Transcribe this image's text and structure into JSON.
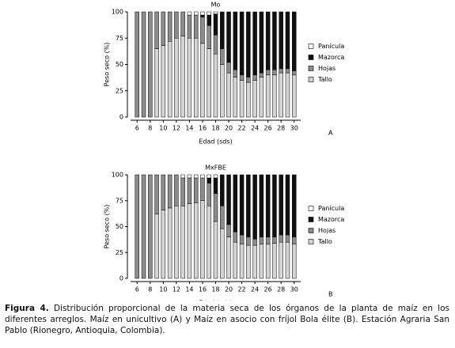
{
  "chart_data": [
    {
      "type": "bar",
      "stacked": true,
      "title": "Mo",
      "panel": "A",
      "xlabel": "Edad (sds)",
      "ylabel": "Peso seco (%)",
      "x": [
        6,
        7,
        8,
        9,
        10,
        11,
        12,
        13,
        14,
        15,
        16,
        17,
        18,
        19,
        20,
        21,
        22,
        23,
        24,
        25,
        26,
        27,
        28,
        29,
        30
      ],
      "xlim": [
        5,
        31
      ],
      "xticks": [
        6,
        8,
        10,
        12,
        14,
        16,
        18,
        20,
        22,
        24,
        26,
        28,
        30
      ],
      "ylim": [
        0,
        100
      ],
      "yticks": [
        0,
        25,
        50,
        75,
        100
      ],
      "legend": "right",
      "series": [
        {
          "name": "Tallo",
          "color": "#d4d4d4",
          "values": [
            0,
            0,
            0,
            65,
            68,
            72,
            75,
            77,
            75,
            75,
            70,
            65,
            60,
            50,
            42,
            38,
            35,
            33,
            35,
            38,
            40,
            40,
            42,
            42,
            40
          ]
        },
        {
          "name": "Hojas",
          "color": "#8c8c8c",
          "values": [
            100,
            100,
            100,
            35,
            32,
            28,
            25,
            23,
            22,
            22,
            25,
            22,
            18,
            15,
            10,
            7,
            5,
            5,
            5,
            4,
            5,
            5,
            4,
            4,
            4
          ]
        },
        {
          "name": "Mazorca",
          "color": "#111111",
          "values": [
            0,
            0,
            0,
            0,
            0,
            0,
            0,
            0,
            0,
            0,
            2,
            10,
            20,
            35,
            48,
            55,
            60,
            62,
            60,
            58,
            55,
            55,
            54,
            54,
            56
          ]
        },
        {
          "name": "Panícula",
          "color": "#ffffff",
          "values": [
            0,
            0,
            0,
            0,
            0,
            0,
            0,
            0,
            3,
            3,
            3,
            3,
            2,
            0,
            0,
            0,
            0,
            0,
            0,
            0,
            0,
            0,
            0,
            0,
            0
          ]
        }
      ]
    },
    {
      "type": "bar",
      "stacked": true,
      "title": "MxFBE",
      "panel": "B",
      "xlabel": "Edad (sds)",
      "ylabel": "Peso seco (%)",
      "x": [
        6,
        7,
        8,
        9,
        10,
        11,
        12,
        13,
        14,
        15,
        16,
        17,
        18,
        19,
        20,
        21,
        22,
        23,
        24,
        25,
        26,
        27,
        28,
        29,
        30
      ],
      "xlim": [
        5,
        31
      ],
      "xticks": [
        6,
        8,
        10,
        12,
        14,
        16,
        18,
        20,
        22,
        24,
        26,
        28,
        30
      ],
      "ylim": [
        0,
        100
      ],
      "yticks": [
        0,
        25,
        50,
        75,
        100
      ],
      "legend": "right",
      "series": [
        {
          "name": "Tallo",
          "color": "#d4d4d4",
          "values": [
            0,
            0,
            0,
            62,
            66,
            68,
            70,
            70,
            72,
            73,
            75,
            70,
            55,
            48,
            40,
            35,
            33,
            32,
            32,
            33,
            33,
            34,
            35,
            35,
            33
          ]
        },
        {
          "name": "Hojas",
          "color": "#8c8c8c",
          "values": [
            100,
            100,
            100,
            38,
            34,
            32,
            30,
            27,
            25,
            24,
            22,
            22,
            27,
            22,
            12,
            10,
            9,
            8,
            6,
            7,
            7,
            6,
            7,
            7,
            7
          ]
        },
        {
          "name": "Mazorca",
          "color": "#111111",
          "values": [
            0,
            0,
            0,
            0,
            0,
            0,
            0,
            0,
            0,
            0,
            0,
            5,
            15,
            30,
            48,
            55,
            58,
            60,
            62,
            60,
            60,
            60,
            58,
            58,
            60
          ]
        },
        {
          "name": "Panícula",
          "color": "#ffffff",
          "values": [
            0,
            0,
            0,
            0,
            0,
            0,
            0,
            3,
            3,
            3,
            3,
            3,
            3,
            0,
            0,
            0,
            0,
            0,
            0,
            0,
            0,
            0,
            0,
            0,
            0
          ]
        }
      ]
    }
  ],
  "figure": {
    "label": "Figura 4.",
    "text": "Distribución proporcional de la materia seca de los órganos de la planta de maíz en los diferentes arreglos. Maíz en unicultivo (A) y Maíz en asocio con fríjol Bola élite (B). Estación Agraria San Pablo (Rionegro, Antioquia, Colombia)."
  }
}
